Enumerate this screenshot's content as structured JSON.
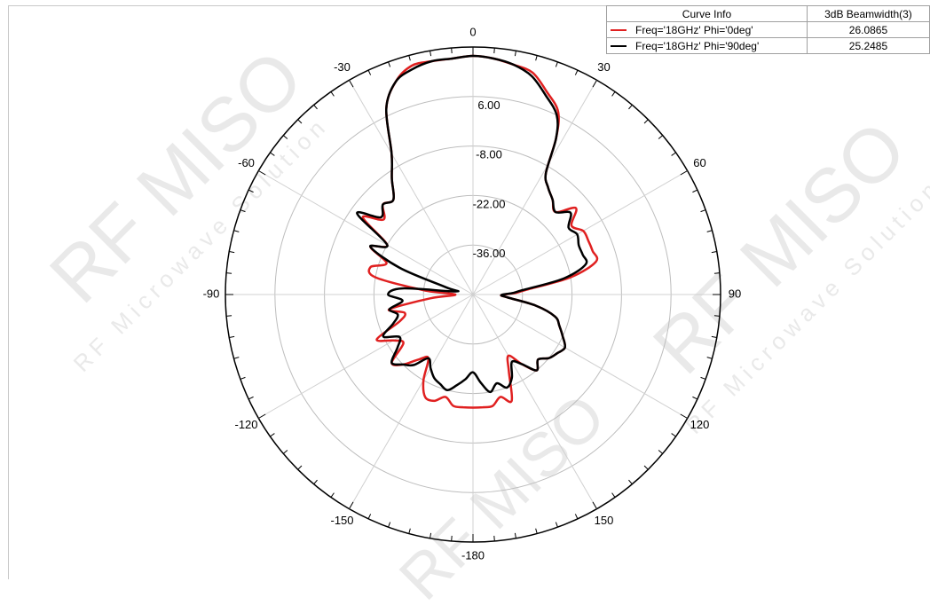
{
  "chart_data": {
    "type": "polar-line",
    "angle_ticks": [
      0,
      30,
      60,
      90,
      120,
      150,
      -180,
      -150,
      -120,
      -90,
      -60,
      -30
    ],
    "angle_tick_labels": [
      "0",
      "30",
      "60",
      "90",
      "120",
      "150",
      "-180",
      "-150",
      "-120",
      "-90",
      "-60",
      "-30"
    ],
    "radial_tick_labels": [
      "6.00",
      "-8.00",
      "-22.00",
      "-36.00"
    ],
    "radial_ticks": [
      6,
      -8,
      -22,
      -36
    ],
    "r_range": [
      -50,
      20
    ],
    "grid": true,
    "series": [
      {
        "name": "Freq='18GHz' Phi='0deg'",
        "color": "#e02020",
        "beamwidth": "26.0865",
        "theta": [
          0,
          5,
          10,
          15,
          20,
          25,
          28,
          31,
          35,
          40,
          45,
          50,
          55,
          60,
          65,
          70,
          75,
          80,
          85,
          88,
          91,
          95,
          100,
          105,
          110,
          115,
          120,
          125,
          130,
          135,
          140,
          145,
          150,
          155,
          160,
          165,
          170,
          175,
          180,
          185,
          190,
          195,
          200,
          205,
          210,
          215,
          220,
          225,
          230,
          235,
          240,
          245,
          250,
          255,
          260,
          265,
          270,
          275,
          280,
          285,
          290,
          295,
          300,
          305,
          310,
          315,
          320,
          325,
          330,
          335,
          340,
          345,
          350,
          355
        ],
        "r": [
          17.5,
          17,
          16,
          15,
          11,
          7,
          0,
          -10,
          -13,
          -15,
          -17,
          -12,
          -16,
          -14,
          -14,
          -14,
          -14,
          -22,
          -35,
          -38,
          -42,
          -40,
          -32,
          -26,
          -24,
          -22,
          -20,
          -21,
          -22,
          -24,
          -22,
          -26,
          -30,
          -26,
          -18,
          -20,
          -18,
          -18,
          -18,
          -18,
          -18,
          -20,
          -18,
          -18,
          -22,
          -28,
          -26,
          -22,
          -20,
          -26,
          -24,
          -20,
          -28,
          -30,
          -26,
          -38,
          -45,
          -36,
          -22,
          -20,
          -24,
          -18,
          -22,
          -12,
          -17,
          -14,
          -15,
          -10,
          -4,
          8,
          14,
          17,
          17,
          17
        ]
      },
      {
        "name": "Freq='18GHz' Phi='90deg'",
        "color": "#000000",
        "beamwidth": "25.2485",
        "theta": [
          0,
          5,
          10,
          15,
          20,
          25,
          28,
          31,
          35,
          40,
          45,
          50,
          55,
          60,
          65,
          70,
          75,
          80,
          85,
          88,
          91,
          95,
          100,
          105,
          110,
          115,
          120,
          125,
          130,
          135,
          140,
          145,
          150,
          155,
          160,
          165,
          170,
          175,
          180,
          185,
          190,
          195,
          200,
          205,
          210,
          215,
          220,
          225,
          230,
          235,
          240,
          245,
          250,
          255,
          260,
          265,
          270,
          275,
          280,
          285,
          290,
          295,
          300,
          305,
          310,
          315,
          320,
          325,
          330,
          335,
          340,
          345,
          350,
          355
        ],
        "r": [
          17.5,
          17,
          16,
          14,
          10,
          6,
          0,
          -10,
          -13,
          -15,
          -17,
          -14,
          -17,
          -16,
          -17,
          -17,
          -17,
          -24,
          -36,
          -39,
          -42,
          -40,
          -32,
          -26,
          -24,
          -22,
          -20,
          -21,
          -22,
          -24,
          -22,
          -26,
          -28,
          -24,
          -22,
          -24,
          -22,
          -25,
          -28,
          -26,
          -24,
          -22,
          -23,
          -24,
          -26,
          -28,
          -24,
          -22,
          -20,
          -24,
          -26,
          -22,
          -26,
          -28,
          -26,
          -30,
          -26,
          -30,
          -45,
          -42,
          -28,
          -18,
          -22,
          -10,
          -16,
          -14,
          -15,
          -10,
          -4,
          8,
          14,
          16,
          17,
          17
        ]
      }
    ]
  },
  "legend": {
    "col1_header": "Curve Info",
    "col2_header": "3dB Beamwidth(3)"
  },
  "watermark": {
    "brand": "RF MISO",
    "tagline": "RF Microwave Solution"
  }
}
